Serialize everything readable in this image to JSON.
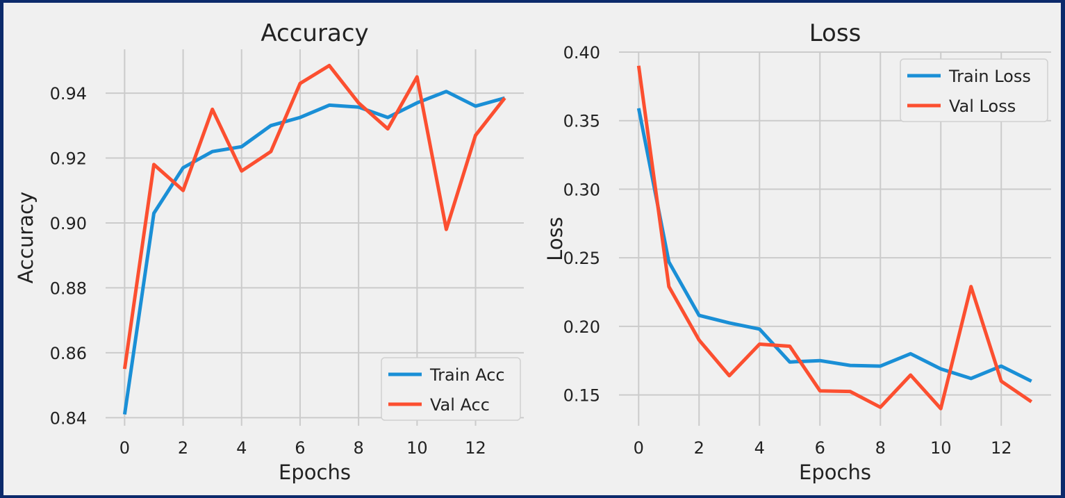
{
  "colors": {
    "train": "#1a8fd6",
    "val": "#fc4f30",
    "background": "#f0f0f0",
    "grid": "#cbcbcb",
    "border": "#0c2a6b"
  },
  "chart_data": [
    {
      "type": "line",
      "title": "Accuracy",
      "xlabel": "Epochs",
      "ylabel": "Accuracy",
      "xlim": [
        -0.65,
        13.65
      ],
      "ylim": [
        0.8375,
        0.9535
      ],
      "xticks": [
        0,
        2,
        4,
        6,
        8,
        10,
        12
      ],
      "yticks": [
        0.84,
        0.86,
        0.88,
        0.9,
        0.92,
        0.94
      ],
      "ytick_labels": [
        "0.84",
        "0.86",
        "0.88",
        "0.90",
        "0.92",
        "0.94"
      ],
      "grid": true,
      "legend_position": "lower-right",
      "x": [
        0,
        1,
        2,
        3,
        4,
        5,
        6,
        7,
        8,
        9,
        10,
        11,
        12,
        13
      ],
      "series": [
        {
          "name": "Train Acc",
          "color": "#1a8fd6",
          "values": [
            0.841,
            0.903,
            0.917,
            0.922,
            0.9235,
            0.93,
            0.9325,
            0.9363,
            0.9357,
            0.9325,
            0.937,
            0.9405,
            0.936,
            0.9385
          ]
        },
        {
          "name": "Val Acc",
          "color": "#fc4f30",
          "values": [
            0.855,
            0.918,
            0.91,
            0.935,
            0.916,
            0.922,
            0.943,
            0.9485,
            0.937,
            0.929,
            0.945,
            0.898,
            0.927,
            0.9385
          ]
        }
      ]
    },
    {
      "type": "line",
      "title": "Loss",
      "xlabel": "Epochs",
      "ylabel": "Loss",
      "xlim": [
        -0.65,
        13.65
      ],
      "ylim": [
        0.1275,
        0.4
      ],
      "xticks": [
        0,
        2,
        4,
        6,
        8,
        10,
        12
      ],
      "yticks": [
        0.15,
        0.2,
        0.25,
        0.3,
        0.35,
        0.4
      ],
      "ytick_labels": [
        "0.15",
        "0.20",
        "0.25",
        "0.30",
        "0.35",
        "0.40"
      ],
      "grid": true,
      "legend_position": "upper-right",
      "x": [
        0,
        1,
        2,
        3,
        4,
        5,
        6,
        7,
        8,
        9,
        10,
        11,
        12,
        13
      ],
      "series": [
        {
          "name": "Train Loss",
          "color": "#1a8fd6",
          "values": [
            0.359,
            0.247,
            0.208,
            0.2025,
            0.198,
            0.174,
            0.175,
            0.1715,
            0.171,
            0.18,
            0.169,
            0.162,
            0.171,
            0.16
          ]
        },
        {
          "name": "Val Loss",
          "color": "#fc4f30",
          "values": [
            0.39,
            0.229,
            0.19,
            0.164,
            0.187,
            0.1855,
            0.153,
            0.1525,
            0.141,
            0.1645,
            0.14,
            0.229,
            0.16,
            0.145
          ]
        }
      ]
    }
  ]
}
